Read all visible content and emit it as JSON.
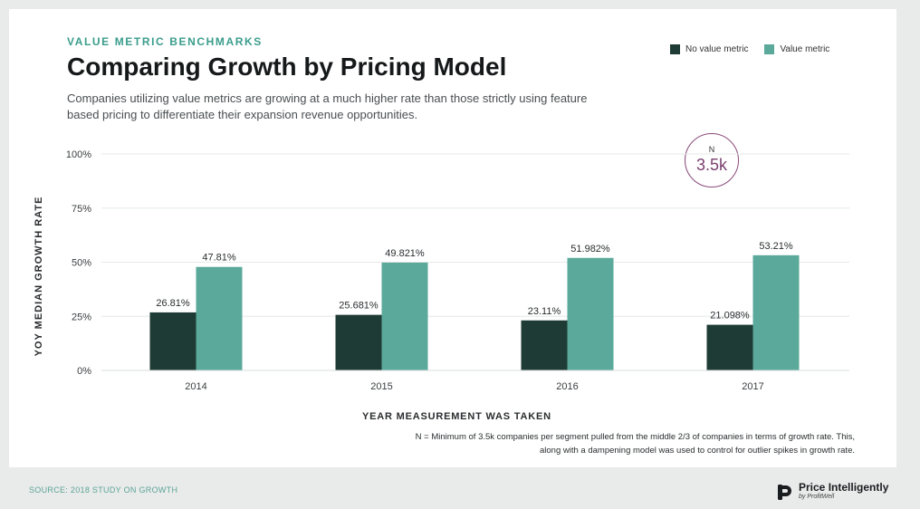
{
  "header": {
    "kicker": "VALUE METRIC BENCHMARKS",
    "title": "Comparing Growth by Pricing Model",
    "subtitle": "Companies utilizing value metrics are growing at a much higher rate than those strictly using feature based pricing to differentiate their expansion revenue opportunities."
  },
  "badge": {
    "label": "N",
    "value": "3.5k"
  },
  "footer": {
    "note": "N = Minimum of 3.5k companies per segment pulled from the middle 2/3 of companies in terms of growth rate. This, along with a dampening model was used to control for outlier spikes in growth rate.",
    "source": "SOURCE: 2018 STUDY ON GROWTH",
    "brand_name": "Price Intelligently",
    "brand_sub": "by ProfitWell"
  },
  "colors": {
    "no_value_metric": "#1e3b35",
    "value_metric": "#5aa99a",
    "accent": "#3a9d8c"
  },
  "chart_data": {
    "type": "bar",
    "categories": [
      "2014",
      "2015",
      "2016",
      "2017"
    ],
    "series": [
      {
        "name": "No value metric",
        "values": [
          26.81,
          25.681,
          23.11,
          21.098
        ],
        "labels": [
          "26.81%",
          "25.681%",
          "23.11%",
          "21.098%"
        ]
      },
      {
        "name": "Value metric",
        "values": [
          47.81,
          49.821,
          51.982,
          53.21
        ],
        "labels": [
          "47.81%",
          "49.821%",
          "51.982%",
          "53.21%"
        ]
      }
    ],
    "xlabel": "YEAR MEASUREMENT WAS TAKEN",
    "ylabel": "YOY MEDIAN GROWTH RATE",
    "ylim": [
      0,
      100
    ],
    "yticks": [
      0,
      25,
      50,
      75,
      100
    ],
    "ytick_labels": [
      "0%",
      "25%",
      "50%",
      "75%",
      "100%"
    ],
    "grid": true,
    "legend": "top-right"
  }
}
